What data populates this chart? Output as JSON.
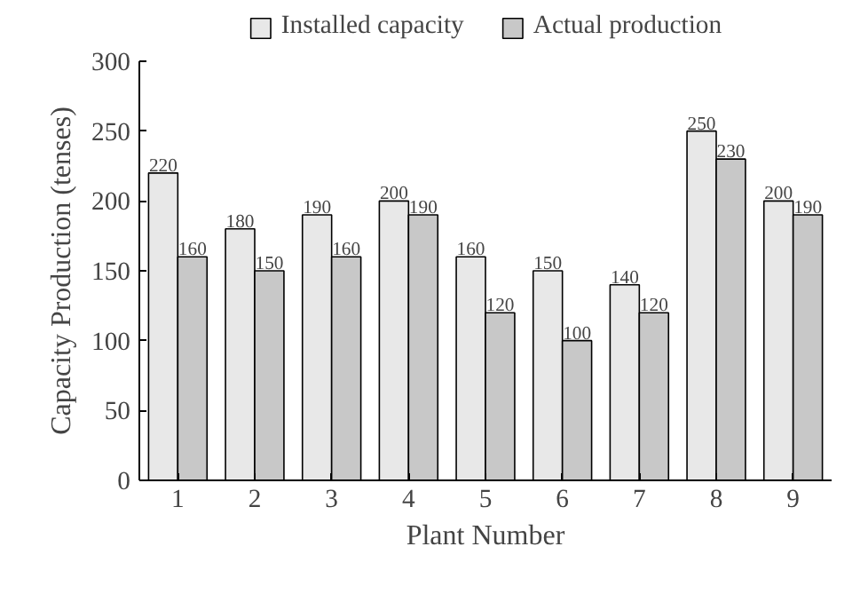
{
  "chart_data": {
    "type": "bar",
    "xlabel": "Plant Number",
    "ylabel": "Capacity Production (tenses)",
    "categories": [
      "1",
      "2",
      "3",
      "4",
      "5",
      "6",
      "7",
      "8",
      "9"
    ],
    "series": [
      {
        "name": "Installed capacity",
        "color": "#e8e8e8",
        "values": [
          220,
          180,
          190,
          200,
          160,
          150,
          140,
          250,
          200
        ]
      },
      {
        "name": "Actual production",
        "color": "#c8c8c8",
        "values": [
          160,
          150,
          160,
          190,
          120,
          100,
          120,
          230,
          190
        ]
      }
    ],
    "ylim": [
      0,
      300
    ],
    "yticks": [
      0,
      50,
      100,
      150,
      200,
      250,
      300
    ],
    "grid": false,
    "legend": "top",
    "data_labels": true
  }
}
